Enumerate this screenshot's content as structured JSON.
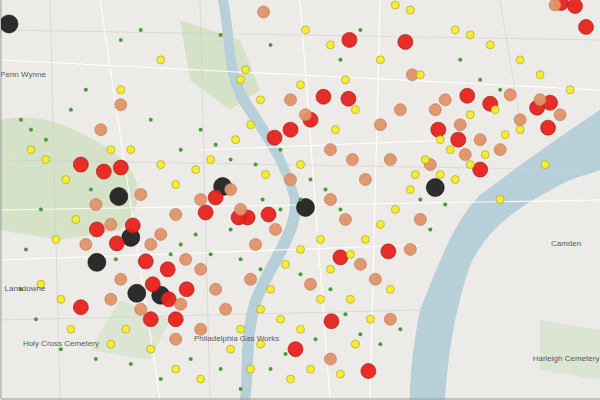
{
  "chart_data": {
    "type": "scatter",
    "xlim": [
      0,
      600
    ],
    "ylim": [
      0,
      400
    ],
    "xticks": [
      0,
      600
    ],
    "yticks": [
      0,
      400
    ],
    "tick_labels": false,
    "grid": false,
    "series": [
      {
        "color": "#222222",
        "marker": "circle",
        "x": [
          8,
          118,
          222,
          305,
          435,
          130,
          96,
          136,
          160
        ],
        "values": [
          376,
          203,
          213,
          192,
          212,
          162,
          137,
          106,
          104
        ]
      },
      {
        "color": "#e8231e",
        "marker": "circle",
        "x": [
          349,
          405,
          561,
          80,
          103,
          274,
          290,
          323,
          348,
          310,
          438,
          247,
          268,
          238,
          96,
          116,
          167,
          152,
          186,
          168,
          150,
          80,
          175,
          388,
          340,
          331,
          368,
          490,
          537,
          550,
          467,
          458,
          480,
          548,
          586,
          575,
          120,
          215,
          205,
          132,
          145,
          295
        ],
        "values": [
          360,
          358,
          397,
          235,
          228,
          262,
          270,
          303,
          301,
          280,
          270,
          182,
          185,
          182,
          170,
          156,
          130,
          115,
          110,
          100,
          80,
          92,
          80,
          148,
          142,
          78,
          28,
          296,
          292,
          297,
          304,
          260,
          230,
          272,
          373,
          394,
          232,
          202,
          187,
          174,
          138,
          50
        ]
      },
      {
        "color": "#e0936a",
        "marker": "circle",
        "x": [
          263,
          290,
          305,
          330,
          352,
          380,
          400,
          412,
          435,
          445,
          460,
          500,
          520,
          510,
          390,
          365,
          330,
          345,
          360,
          375,
          410,
          420,
          290,
          275,
          255,
          240,
          230,
          200,
          175,
          150,
          160,
          185,
          200,
          215,
          225,
          200,
          175,
          140,
          120,
          110,
          85,
          100,
          120,
          95,
          390,
          330,
          310,
          140,
          555,
          540,
          480,
          465,
          430,
          560,
          110,
          180,
          250
        ],
        "values": [
          388,
          300,
          285,
          250,
          240,
          275,
          290,
          325,
          290,
          300,
          275,
          250,
          280,
          305,
          240,
          220,
          200,
          180,
          135,
          120,
          150,
          180,
          220,
          170,
          155,
          190,
          210,
          200,
          185,
          155,
          165,
          140,
          130,
          110,
          90,
          70,
          60,
          90,
          120,
          100,
          155,
          270,
          295,
          195,
          80,
          40,
          115,
          205,
          395,
          300,
          260,
          245,
          235,
          285,
          175,
          95,
          120
        ]
      },
      {
        "color": "#f7ec2c",
        "marker": "circle",
        "x": [
          305,
          330,
          380,
          395,
          410,
          455,
          470,
          490,
          520,
          540,
          570,
          420,
          440,
          450,
          425,
          415,
          440,
          455,
          470,
          485,
          505,
          520,
          495,
          470,
          410,
          395,
          380,
          365,
          350,
          330,
          320,
          300,
          285,
          270,
          260,
          280,
          300,
          320,
          350,
          370,
          390,
          355,
          340,
          310,
          290,
          250,
          260,
          240,
          230,
          200,
          175,
          150,
          125,
          110,
          70,
          60,
          40,
          55,
          75,
          65,
          45,
          110,
          130,
          160,
          175,
          195,
          210,
          235,
          250,
          265,
          300,
          335,
          355,
          345,
          300,
          260,
          245,
          240,
          160,
          120,
          30,
          500,
          545
        ],
        "values": [
          370,
          355,
          340,
          395,
          390,
          370,
          365,
          355,
          340,
          325,
          310,
          325,
          260,
          250,
          240,
          225,
          225,
          220,
          235,
          245,
          265,
          270,
          290,
          285,
          210,
          190,
          175,
          160,
          145,
          130,
          160,
          150,
          135,
          110,
          90,
          80,
          70,
          100,
          100,
          80,
          110,
          55,
          25,
          30,
          20,
          30,
          55,
          70,
          50,
          20,
          30,
          50,
          70,
          55,
          70,
          100,
          115,
          160,
          180,
          220,
          240,
          250,
          250,
          235,
          215,
          230,
          240,
          260,
          275,
          225,
          235,
          270,
          290,
          320,
          315,
          300,
          330,
          320,
          340,
          310,
          250,
          200,
          235
        ]
      },
      {
        "color": "#3f9a2a",
        "marker": "circle",
        "x": [
          20,
          30,
          45,
          70,
          85,
          150,
          180,
          200,
          215,
          230,
          255,
          280,
          310,
          325,
          340,
          280,
          262,
          195,
          180,
          210,
          240,
          260,
          300,
          330,
          345,
          360,
          380,
          400,
          315,
          285,
          270,
          240,
          220,
          190,
          160,
          130,
          95,
          60,
          35,
          20,
          25,
          40,
          90,
          115,
          170,
          230,
          300,
          420,
          445,
          430,
          460,
          480,
          500,
          340,
          360,
          120,
          140,
          270,
          220
        ],
        "values": [
          280,
          270,
          260,
          290,
          310,
          280,
          250,
          270,
          255,
          240,
          235,
          250,
          220,
          210,
          190,
          190,
          200,
          165,
          155,
          145,
          140,
          130,
          125,
          110,
          85,
          65,
          55,
          70,
          60,
          45,
          30,
          10,
          30,
          40,
          20,
          35,
          40,
          50,
          80,
          110,
          150,
          190,
          210,
          140,
          145,
          170,
          200,
          200,
          195,
          170,
          340,
          320,
          310,
          340,
          370,
          360,
          370,
          355,
          365
        ]
      }
    ],
    "annotations": [
      {
        "text": "Penn Wynne",
        "x": 22,
        "y": 325
      },
      {
        "text": "Lansdowne",
        "x": 24,
        "y": 110
      },
      {
        "text": "Camden",
        "x": 566,
        "y": 155
      },
      {
        "text": "Holy Cross Cemetery",
        "x": 60,
        "y": 55
      },
      {
        "text": "Philadelphia Gas Works",
        "x": 236,
        "y": 60
      },
      {
        "text": "Harleigh Cemetery",
        "x": 566,
        "y": 40
      }
    ]
  }
}
